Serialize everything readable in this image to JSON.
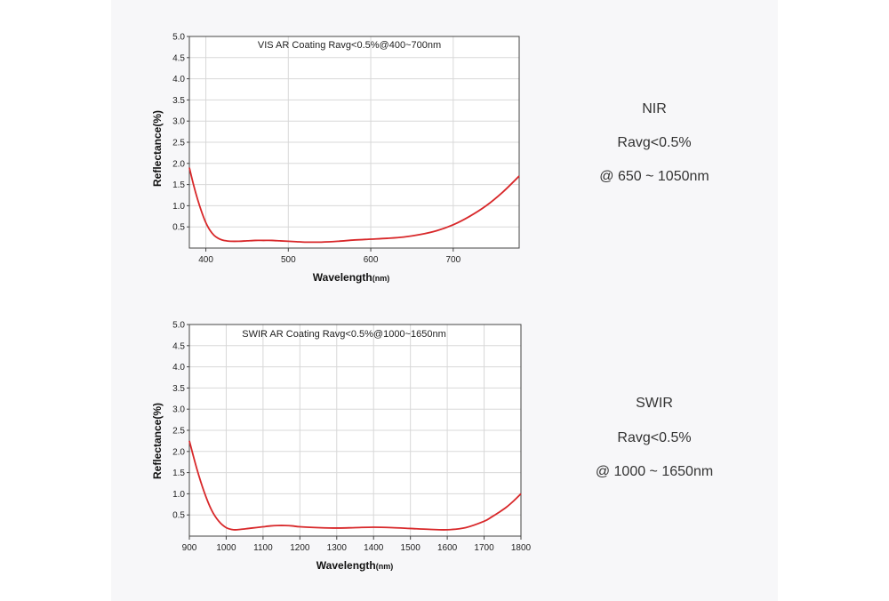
{
  "chart_data": [
    {
      "type": "line",
      "title": "VIS AR Coating Ravg<0.5%@400~700nm",
      "xlabel": "Wavelength",
      "xlabel_unit": "(nm)",
      "ylabel": "Reflectance(%)",
      "xlim": [
        380,
        780
      ],
      "ylim": [
        0,
        5.0
      ],
      "xticks": [
        400,
        500,
        600,
        700
      ],
      "xtick_labels": [
        "400",
        "500",
        "600",
        "700"
      ],
      "yticks": [
        0.5,
        1.0,
        1.5,
        2.0,
        2.5,
        3.0,
        3.5,
        4.0,
        4.5,
        5.0
      ],
      "ytick_labels": [
        "0.5",
        "1.0",
        "1.5",
        "2.0",
        "2.5",
        "3.0",
        "3.5",
        "4.0",
        "4.5",
        "5.0"
      ],
      "grid": true,
      "series": [
        {
          "name": "Reflectance",
          "color": "#d8282a",
          "x": [
            380,
            385,
            390,
            395,
            400,
            405,
            410,
            415,
            420,
            425,
            430,
            440,
            450,
            460,
            470,
            480,
            490,
            500,
            510,
            520,
            530,
            540,
            560,
            580,
            600,
            620,
            640,
            660,
            680,
            700,
            720,
            740,
            760,
            780
          ],
          "y": [
            1.9,
            1.5,
            1.15,
            0.85,
            0.6,
            0.42,
            0.3,
            0.23,
            0.19,
            0.17,
            0.16,
            0.16,
            0.17,
            0.18,
            0.18,
            0.18,
            0.17,
            0.16,
            0.15,
            0.14,
            0.14,
            0.14,
            0.16,
            0.19,
            0.21,
            0.23,
            0.26,
            0.32,
            0.41,
            0.55,
            0.75,
            1.0,
            1.32,
            1.7
          ]
        }
      ]
    },
    {
      "type": "line",
      "title": "SWIR AR Coating Ravg<0.5%@1000~1650nm",
      "xlabel": "Wavelength",
      "xlabel_unit": "(nm)",
      "ylabel": "Reflectance(%)",
      "xlim": [
        900,
        1800
      ],
      "ylim": [
        0,
        5.0
      ],
      "xticks": [
        900,
        1000,
        1100,
        1200,
        1300,
        1400,
        1500,
        1600,
        1700,
        1800
      ],
      "xtick_labels": [
        "900",
        "1000",
        "1100",
        "1200",
        "1300",
        "1400",
        "1500",
        "1600",
        "1700",
        "1800"
      ],
      "yticks": [
        0.5,
        1.0,
        1.5,
        2.0,
        2.5,
        3.0,
        3.5,
        4.0,
        4.5,
        5.0
      ],
      "ytick_labels": [
        "0.5",
        "1.0",
        "1.5",
        "2.0",
        "2.5",
        "3.0",
        "3.5",
        "4.0",
        "4.5",
        "5.0"
      ],
      "grid": true,
      "series": [
        {
          "name": "Reflectance",
          "color": "#d8282a",
          "x": [
            900,
            920,
            940,
            960,
            980,
            1000,
            1020,
            1040,
            1060,
            1080,
            1100,
            1120,
            1140,
            1160,
            1180,
            1200,
            1250,
            1300,
            1350,
            1400,
            1450,
            1500,
            1550,
            1600,
            1650,
            1700,
            1720,
            1740,
            1760,
            1780,
            1800
          ],
          "y": [
            2.25,
            1.6,
            1.05,
            0.62,
            0.35,
            0.2,
            0.15,
            0.16,
            0.18,
            0.2,
            0.22,
            0.24,
            0.25,
            0.25,
            0.24,
            0.22,
            0.2,
            0.19,
            0.2,
            0.21,
            0.2,
            0.18,
            0.16,
            0.15,
            0.2,
            0.35,
            0.45,
            0.56,
            0.68,
            0.83,
            1.0
          ]
        }
      ]
    }
  ],
  "info_panels": [
    {
      "label": "NIR",
      "ravg": "Ravg<0.5%",
      "range": "@ 650 ~ 1050nm"
    },
    {
      "label": "SWIR",
      "ravg": "Ravg<0.5%",
      "range": "@ 1000 ~ 1650nm"
    }
  ]
}
